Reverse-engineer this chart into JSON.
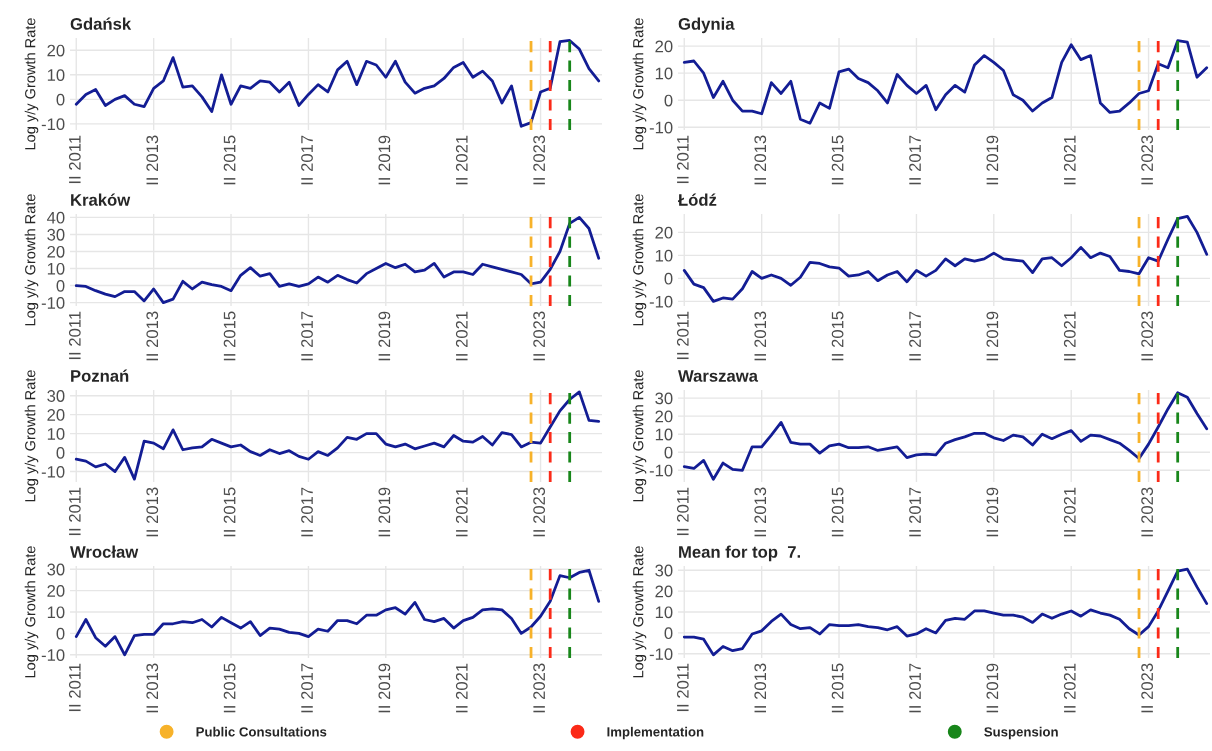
{
  "chart_data": [
    {
      "type": "line",
      "title": "Gdańsk",
      "ylabel": "Log y/y Growth Rate",
      "color": "#131d94",
      "grid": true,
      "legend": "bottom",
      "x": [
        "2011-04",
        "2011-07",
        "2011-10",
        "2012-01",
        "2012-04",
        "2012-07",
        "2012-10",
        "2013-01",
        "2013-04",
        "2013-07",
        "2013-10",
        "2014-01",
        "2014-04",
        "2014-07",
        "2014-10",
        "2015-01",
        "2015-04",
        "2015-07",
        "2015-10",
        "2016-01",
        "2016-04",
        "2016-07",
        "2016-10",
        "2017-01",
        "2017-04",
        "2017-07",
        "2017-10",
        "2018-01",
        "2018-04",
        "2018-07",
        "2018-10",
        "2019-01",
        "2019-04",
        "2019-07",
        "2019-10",
        "2020-01",
        "2020-04",
        "2020-07",
        "2020-10",
        "2021-01",
        "2021-04",
        "2021-07",
        "2021-10",
        "2022-01",
        "2022-04",
        "2022-07",
        "2022-10",
        "2023-01",
        "2023-04",
        "2023-07",
        "2023-10",
        "2024-01",
        "2024-04",
        "2024-07",
        "2024-10"
      ],
      "values": [
        -2,
        2,
        4,
        -2.5,
        0,
        1.5,
        -2,
        -3,
        4.5,
        7.5,
        17,
        5,
        5.5,
        1,
        -5,
        10,
        -2,
        5.5,
        4.5,
        7.5,
        7,
        3,
        7,
        -2.5,
        2,
        6,
        3,
        12,
        15.5,
        6,
        15.5,
        14,
        9,
        15.5,
        7,
        2.5,
        4.5,
        5.5,
        8.5,
        13,
        15,
        9,
        11.5,
        7.5,
        -1.5,
        5.5,
        -11,
        -9.5,
        3,
        4.5,
        23.5,
        24,
        20.5,
        12.5,
        7.5
      ],
      "xlim": [
        "2011-02",
        "2024-11"
      ],
      "xticks": [
        {
          "value": "2011-04",
          "label": "II 2011"
        },
        {
          "value": "2013-04",
          "label": "II 2013"
        },
        {
          "value": "2015-04",
          "label": "II 2015"
        },
        {
          "value": "2017-04",
          "label": "II 2017"
        },
        {
          "value": "2019-04",
          "label": "II 2019"
        },
        {
          "value": "2021-04",
          "label": "II 2021"
        },
        {
          "value": "2023-04",
          "label": "II 2023"
        }
      ],
      "ylim": [
        -12.5,
        25
      ],
      "yticks": [
        -10,
        0,
        10,
        20
      ],
      "ref_lines": [
        {
          "axis": "x",
          "value": "2023-01",
          "label": "Public Consultations",
          "color": "#f7b22a",
          "line_style": "dashed"
        },
        {
          "axis": "x",
          "value": "2023-07",
          "label": "Implementation",
          "color": "#fb2a18",
          "line_style": "dashed"
        },
        {
          "axis": "x",
          "value": "2024-01",
          "label": "Suspension",
          "color": "#18861a",
          "line_style": "dashed"
        }
      ]
    },
    {
      "type": "line",
      "title": "Gdynia",
      "ylabel": "Log y/y Growth Rate",
      "color": "#131d94",
      "grid": true,
      "x": [
        "2011-04",
        "2011-07",
        "2011-10",
        "2012-01",
        "2012-04",
        "2012-07",
        "2012-10",
        "2013-01",
        "2013-04",
        "2013-07",
        "2013-10",
        "2014-01",
        "2014-04",
        "2014-07",
        "2014-10",
        "2015-01",
        "2015-04",
        "2015-07",
        "2015-10",
        "2016-01",
        "2016-04",
        "2016-07",
        "2016-10",
        "2017-01",
        "2017-04",
        "2017-07",
        "2017-10",
        "2018-01",
        "2018-04",
        "2018-07",
        "2018-10",
        "2019-01",
        "2019-04",
        "2019-07",
        "2019-10",
        "2020-01",
        "2020-04",
        "2020-07",
        "2020-10",
        "2021-01",
        "2021-04",
        "2021-07",
        "2021-10",
        "2022-01",
        "2022-04",
        "2022-07",
        "2022-10",
        "2023-01",
        "2023-04",
        "2023-07",
        "2023-10",
        "2024-01",
        "2024-04",
        "2024-07",
        "2024-10"
      ],
      "values": [
        14,
        14.5,
        10,
        1,
        7,
        0,
        -4,
        -4,
        -5,
        6.5,
        2.5,
        7,
        -7,
        -8.5,
        -1,
        -3,
        10.5,
        11.5,
        8,
        6.5,
        3.5,
        -1,
        9.5,
        5.5,
        2.5,
        5.5,
        -3.5,
        2,
        5.5,
        3,
        13,
        16.5,
        14,
        11,
        2,
        0,
        -4,
        -1,
        1,
        14,
        20.5,
        15,
        16.5,
        -1,
        -4.5,
        -4,
        -1,
        2.5,
        3.5,
        13.5,
        12,
        22,
        21.5,
        8.5,
        12
      ],
      "xlim": [
        "2011-02",
        "2024-11"
      ],
      "xticks": [
        {
          "value": "2011-04",
          "label": "II 2011"
        },
        {
          "value": "2013-04",
          "label": "II 2013"
        },
        {
          "value": "2015-04",
          "label": "II 2015"
        },
        {
          "value": "2017-04",
          "label": "II 2017"
        },
        {
          "value": "2019-04",
          "label": "II 2019"
        },
        {
          "value": "2021-04",
          "label": "II 2021"
        },
        {
          "value": "2023-04",
          "label": "II 2023"
        }
      ],
      "ylim": [
        -11,
        23
      ],
      "yticks": [
        -10,
        0,
        10,
        20
      ],
      "ref_lines": [
        {
          "axis": "x",
          "value": "2023-01",
          "color": "#f7b22a",
          "line_style": "dashed"
        },
        {
          "axis": "x",
          "value": "2023-07",
          "color": "#fb2a18",
          "line_style": "dashed"
        },
        {
          "axis": "x",
          "value": "2024-01",
          "color": "#18861a",
          "line_style": "dashed"
        }
      ]
    },
    {
      "type": "line",
      "title": "Kraków",
      "ylabel": "Log y/y Growth Rate",
      "color": "#131d94",
      "grid": true,
      "x": [
        "2011-04",
        "2011-07",
        "2011-10",
        "2012-01",
        "2012-04",
        "2012-07",
        "2012-10",
        "2013-01",
        "2013-04",
        "2013-07",
        "2013-10",
        "2014-01",
        "2014-04",
        "2014-07",
        "2014-10",
        "2015-01",
        "2015-04",
        "2015-07",
        "2015-10",
        "2016-01",
        "2016-04",
        "2016-07",
        "2016-10",
        "2017-01",
        "2017-04",
        "2017-07",
        "2017-10",
        "2018-01",
        "2018-04",
        "2018-07",
        "2018-10",
        "2019-01",
        "2019-04",
        "2019-07",
        "2019-10",
        "2020-01",
        "2020-04",
        "2020-07",
        "2020-10",
        "2021-01",
        "2021-04",
        "2021-07",
        "2021-10",
        "2022-01",
        "2022-04",
        "2022-07",
        "2022-10",
        "2023-01",
        "2023-04",
        "2023-07",
        "2023-10",
        "2024-01",
        "2024-04",
        "2024-07",
        "2024-10"
      ],
      "values": [
        0,
        -0.5,
        -3,
        -5,
        -6.5,
        -3.5,
        -3.5,
        -9,
        -2,
        -10,
        -8,
        2.5,
        -2,
        2,
        0.5,
        -0.5,
        -3,
        6,
        10.5,
        5.5,
        7,
        -0.5,
        1,
        -0.5,
        1,
        5,
        2,
        6,
        3.5,
        1.5,
        7,
        10,
        13,
        10.5,
        12.5,
        8,
        9,
        13,
        5,
        8,
        8,
        6.5,
        12.5,
        11,
        9.5,
        8,
        6.5,
        1,
        2,
        9.5,
        20,
        36.5,
        40,
        33.5,
        16
      ],
      "xlim": [
        "2011-02",
        "2024-11"
      ],
      "xticks": [
        {
          "value": "2011-04",
          "label": "II 2011"
        },
        {
          "value": "2013-04",
          "label": "II 2013"
        },
        {
          "value": "2015-04",
          "label": "II 2015"
        },
        {
          "value": "2017-04",
          "label": "II 2017"
        },
        {
          "value": "2019-04",
          "label": "II 2019"
        },
        {
          "value": "2021-04",
          "label": "II 2021"
        },
        {
          "value": "2023-04",
          "label": "II 2023"
        }
      ],
      "ylim": [
        -12,
        42
      ],
      "yticks": [
        -10,
        0,
        10,
        20,
        30,
        40
      ],
      "ref_lines": [
        {
          "axis": "x",
          "value": "2023-01",
          "color": "#f7b22a",
          "line_style": "dashed"
        },
        {
          "axis": "x",
          "value": "2023-07",
          "color": "#fb2a18",
          "line_style": "dashed"
        },
        {
          "axis": "x",
          "value": "2024-01",
          "color": "#18861a",
          "line_style": "dashed"
        }
      ]
    },
    {
      "type": "line",
      "title": "Łódź",
      "ylabel": "Log y/y Growth Rate",
      "color": "#131d94",
      "grid": true,
      "x": [
        "2011-04",
        "2011-07",
        "2011-10",
        "2012-01",
        "2012-04",
        "2012-07",
        "2012-10",
        "2013-01",
        "2013-04",
        "2013-07",
        "2013-10",
        "2014-01",
        "2014-04",
        "2014-07",
        "2014-10",
        "2015-01",
        "2015-04",
        "2015-07",
        "2015-10",
        "2016-01",
        "2016-04",
        "2016-07",
        "2016-10",
        "2017-01",
        "2017-04",
        "2017-07",
        "2017-10",
        "2018-01",
        "2018-04",
        "2018-07",
        "2018-10",
        "2019-01",
        "2019-04",
        "2019-07",
        "2019-10",
        "2020-01",
        "2020-04",
        "2020-07",
        "2020-10",
        "2021-01",
        "2021-04",
        "2021-07",
        "2021-10",
        "2022-01",
        "2022-04",
        "2022-07",
        "2022-10",
        "2023-01",
        "2023-04",
        "2023-07",
        "2023-10",
        "2024-01",
        "2024-04",
        "2024-07",
        "2024-10"
      ],
      "values": [
        3.5,
        -2.5,
        -4,
        -10,
        -8.5,
        -9,
        -4.5,
        3,
        0,
        1.5,
        0,
        -3,
        0.5,
        7,
        6.5,
        5,
        4.5,
        1,
        1.5,
        3,
        -1,
        1.5,
        3,
        -1.5,
        3.5,
        1,
        3.5,
        8.5,
        5.5,
        8.5,
        7.5,
        8.5,
        11,
        8.5,
        8,
        7.5,
        2.5,
        8.5,
        9,
        5.5,
        9,
        13.5,
        9,
        11,
        9.5,
        3.5,
        3,
        2,
        9,
        7.5,
        17,
        26,
        27,
        20,
        10.5
      ],
      "xlim": [
        "2011-02",
        "2024-11"
      ],
      "xticks": [
        {
          "value": "2011-04",
          "label": "II 2011"
        },
        {
          "value": "2013-04",
          "label": "II 2013"
        },
        {
          "value": "2015-04",
          "label": "II 2015"
        },
        {
          "value": "2017-04",
          "label": "II 2017"
        },
        {
          "value": "2019-04",
          "label": "II 2019"
        },
        {
          "value": "2021-04",
          "label": "II 2021"
        },
        {
          "value": "2023-04",
          "label": "II 2023"
        }
      ],
      "ylim": [
        -12,
        28
      ],
      "yticks": [
        -10,
        0,
        10,
        20
      ],
      "ref_lines": [
        {
          "axis": "x",
          "value": "2023-01",
          "color": "#f7b22a",
          "line_style": "dashed"
        },
        {
          "axis": "x",
          "value": "2023-07",
          "color": "#fb2a18",
          "line_style": "dashed"
        },
        {
          "axis": "x",
          "value": "2024-01",
          "color": "#18861a",
          "line_style": "dashed"
        }
      ]
    },
    {
      "type": "line",
      "title": "Poznań",
      "ylabel": "Log y/y Growth Rate",
      "color": "#131d94",
      "grid": true,
      "x": [
        "2011-04",
        "2011-07",
        "2011-10",
        "2012-01",
        "2012-04",
        "2012-07",
        "2012-10",
        "2013-01",
        "2013-04",
        "2013-07",
        "2013-10",
        "2014-01",
        "2014-04",
        "2014-07",
        "2014-10",
        "2015-01",
        "2015-04",
        "2015-07",
        "2015-10",
        "2016-01",
        "2016-04",
        "2016-07",
        "2016-10",
        "2017-01",
        "2017-04",
        "2017-07",
        "2017-10",
        "2018-01",
        "2018-04",
        "2018-07",
        "2018-10",
        "2019-01",
        "2019-04",
        "2019-07",
        "2019-10",
        "2020-01",
        "2020-04",
        "2020-07",
        "2020-10",
        "2021-01",
        "2021-04",
        "2021-07",
        "2021-10",
        "2022-01",
        "2022-04",
        "2022-07",
        "2022-10",
        "2023-01",
        "2023-04",
        "2023-07",
        "2023-10",
        "2024-01",
        "2024-04",
        "2024-07",
        "2024-10"
      ],
      "values": [
        -3.5,
        -4.5,
        -7.5,
        -6,
        -10,
        -2.5,
        -14,
        6,
        5,
        2,
        12,
        1.5,
        2.5,
        3,
        7,
        5,
        3,
        4,
        0.5,
        -1.5,
        1.5,
        -0.5,
        1,
        -2,
        -3.5,
        0.5,
        -1.5,
        2.5,
        8,
        7,
        10,
        10,
        4.5,
        3,
        4.5,
        2,
        3.5,
        5,
        3,
        9,
        6,
        5.5,
        8.5,
        4,
        10.5,
        9.5,
        3,
        5.5,
        5,
        13.5,
        22,
        28,
        32,
        17,
        16.5
      ],
      "xlim": [
        "2011-02",
        "2024-11"
      ],
      "xticks": [
        {
          "value": "2011-04",
          "label": "II 2011"
        },
        {
          "value": "2013-04",
          "label": "II 2013"
        },
        {
          "value": "2015-04",
          "label": "II 2015"
        },
        {
          "value": "2017-04",
          "label": "II 2017"
        },
        {
          "value": "2019-04",
          "label": "II 2019"
        },
        {
          "value": "2021-04",
          "label": "II 2021"
        },
        {
          "value": "2023-04",
          "label": "II 2023"
        }
      ],
      "ylim": [
        -15.5,
        33
      ],
      "yticks": [
        -10,
        0,
        10,
        20,
        30
      ],
      "ref_lines": [
        {
          "axis": "x",
          "value": "2023-01",
          "color": "#f7b22a",
          "line_style": "dashed"
        },
        {
          "axis": "x",
          "value": "2023-07",
          "color": "#fb2a18",
          "line_style": "dashed"
        },
        {
          "axis": "x",
          "value": "2024-01",
          "color": "#18861a",
          "line_style": "dashed"
        }
      ]
    },
    {
      "type": "line",
      "title": "Warszawa",
      "ylabel": "Log y/y Growth Rate",
      "color": "#131d94",
      "grid": true,
      "x": [
        "2011-04",
        "2011-07",
        "2011-10",
        "2012-01",
        "2012-04",
        "2012-07",
        "2012-10",
        "2013-01",
        "2013-04",
        "2013-07",
        "2013-10",
        "2014-01",
        "2014-04",
        "2014-07",
        "2014-10",
        "2015-01",
        "2015-04",
        "2015-07",
        "2015-10",
        "2016-01",
        "2016-04",
        "2016-07",
        "2016-10",
        "2017-01",
        "2017-04",
        "2017-07",
        "2017-10",
        "2018-01",
        "2018-04",
        "2018-07",
        "2018-10",
        "2019-01",
        "2019-04",
        "2019-07",
        "2019-10",
        "2020-01",
        "2020-04",
        "2020-07",
        "2020-10",
        "2021-01",
        "2021-04",
        "2021-07",
        "2021-10",
        "2022-01",
        "2022-04",
        "2022-07",
        "2022-10",
        "2023-01",
        "2023-04",
        "2023-07",
        "2023-10",
        "2024-01",
        "2024-04",
        "2024-07",
        "2024-10"
      ],
      "values": [
        -8,
        -9,
        -4.5,
        -15,
        -6,
        -9.5,
        -10,
        3,
        3,
        9.5,
        16.5,
        5.5,
        4.5,
        4.5,
        -0.5,
        3.5,
        4.5,
        2.5,
        2.5,
        3,
        1,
        2,
        3,
        -3,
        -1.5,
        -1,
        -1.5,
        5,
        7,
        8.5,
        10.5,
        10.5,
        8,
        6.5,
        9.5,
        8.5,
        4,
        10,
        7.5,
        10,
        12,
        6,
        9.5,
        9,
        7,
        5,
        1,
        -3.5,
        4.5,
        14,
        24,
        33,
        30.5,
        21.5,
        13
      ],
      "xlim": [
        "2011-02",
        "2024-11"
      ],
      "xticks": [
        {
          "value": "2011-04",
          "label": "II 2011"
        },
        {
          "value": "2013-04",
          "label": "II 2013"
        },
        {
          "value": "2015-04",
          "label": "II 2015"
        },
        {
          "value": "2017-04",
          "label": "II 2017"
        },
        {
          "value": "2019-04",
          "label": "II 2019"
        },
        {
          "value": "2021-04",
          "label": "II 2021"
        },
        {
          "value": "2023-04",
          "label": "II 2023"
        }
      ],
      "ylim": [
        -16.5,
        34.5
      ],
      "yticks": [
        -10,
        0,
        10,
        20,
        30
      ],
      "ref_lines": [
        {
          "axis": "x",
          "value": "2023-01",
          "color": "#f7b22a",
          "line_style": "dashed"
        },
        {
          "axis": "x",
          "value": "2023-07",
          "color": "#fb2a18",
          "line_style": "dashed"
        },
        {
          "axis": "x",
          "value": "2024-01",
          "color": "#18861a",
          "line_style": "dashed"
        }
      ]
    },
    {
      "type": "line",
      "title": "Wrocław",
      "ylabel": "Log y/y Growth Rate",
      "color": "#131d94",
      "grid": true,
      "x": [
        "2011-04",
        "2011-07",
        "2011-10",
        "2012-01",
        "2012-04",
        "2012-07",
        "2012-10",
        "2013-01",
        "2013-04",
        "2013-07",
        "2013-10",
        "2014-01",
        "2014-04",
        "2014-07",
        "2014-10",
        "2015-01",
        "2015-04",
        "2015-07",
        "2015-10",
        "2016-01",
        "2016-04",
        "2016-07",
        "2016-10",
        "2017-01",
        "2017-04",
        "2017-07",
        "2017-10",
        "2018-01",
        "2018-04",
        "2018-07",
        "2018-10",
        "2019-01",
        "2019-04",
        "2019-07",
        "2019-10",
        "2020-01",
        "2020-04",
        "2020-07",
        "2020-10",
        "2021-01",
        "2021-04",
        "2021-07",
        "2021-10",
        "2022-01",
        "2022-04",
        "2022-07",
        "2022-10",
        "2023-01",
        "2023-04",
        "2023-07",
        "2023-10",
        "2024-01",
        "2024-04",
        "2024-07",
        "2024-10"
      ],
      "values": [
        -1.5,
        6.5,
        -2,
        -6,
        -1.5,
        -10,
        -1,
        -0.5,
        -0.5,
        4.5,
        4.5,
        5.5,
        5,
        6.5,
        3,
        7.5,
        5,
        2.5,
        5.5,
        -1,
        2.5,
        2,
        0.5,
        0,
        -1.5,
        2,
        1,
        6,
        6,
        4.5,
        8.5,
        8.5,
        11,
        12,
        9,
        14.5,
        6.5,
        5.5,
        7,
        2.5,
        6,
        7.5,
        11,
        11.5,
        11,
        7,
        0,
        3,
        8,
        15,
        27,
        26,
        28.5,
        29.5,
        15
      ],
      "xlim": [
        "2011-02",
        "2024-11"
      ],
      "xticks": [
        {
          "value": "2011-04",
          "label": "II 2011"
        },
        {
          "value": "2013-04",
          "label": "II 2013"
        },
        {
          "value": "2015-04",
          "label": "II 2015"
        },
        {
          "value": "2017-04",
          "label": "II 2017"
        },
        {
          "value": "2019-04",
          "label": "II 2019"
        },
        {
          "value": "2021-04",
          "label": "II 2021"
        },
        {
          "value": "2023-04",
          "label": "II 2023"
        }
      ],
      "ylim": [
        -11.5,
        31.5
      ],
      "yticks": [
        -10,
        0,
        10,
        20,
        30
      ],
      "ref_lines": [
        {
          "axis": "x",
          "value": "2023-01",
          "color": "#f7b22a",
          "line_style": "dashed"
        },
        {
          "axis": "x",
          "value": "2023-07",
          "color": "#fb2a18",
          "line_style": "dashed"
        },
        {
          "axis": "x",
          "value": "2024-01",
          "color": "#18861a",
          "line_style": "dashed"
        }
      ]
    },
    {
      "type": "line",
      "title": "Mean for top  7.",
      "ylabel": "Log y/y Growth Rate",
      "color": "#131d94",
      "grid": true,
      "x": [
        "2011-04",
        "2011-07",
        "2011-10",
        "2012-01",
        "2012-04",
        "2012-07",
        "2012-10",
        "2013-01",
        "2013-04",
        "2013-07",
        "2013-10",
        "2014-01",
        "2014-04",
        "2014-07",
        "2014-10",
        "2015-01",
        "2015-04",
        "2015-07",
        "2015-10",
        "2016-01",
        "2016-04",
        "2016-07",
        "2016-10",
        "2017-01",
        "2017-04",
        "2017-07",
        "2017-10",
        "2018-01",
        "2018-04",
        "2018-07",
        "2018-10",
        "2019-01",
        "2019-04",
        "2019-07",
        "2019-10",
        "2020-01",
        "2020-04",
        "2020-07",
        "2020-10",
        "2021-01",
        "2021-04",
        "2021-07",
        "2021-10",
        "2022-01",
        "2022-04",
        "2022-07",
        "2022-10",
        "2023-01",
        "2023-04",
        "2023-07",
        "2023-10",
        "2024-01",
        "2024-04",
        "2024-07",
        "2024-10"
      ],
      "values": [
        -2,
        -2,
        -3,
        -10.5,
        -6.5,
        -8.5,
        -7.5,
        -0.5,
        1,
        5.5,
        9,
        4,
        2,
        2.5,
        -0.5,
        4,
        3.5,
        3.5,
        4,
        3,
        2.5,
        1.5,
        3,
        -1.5,
        -0.5,
        2,
        0,
        6,
        7,
        6.5,
        10.5,
        10.5,
        9.5,
        8.5,
        8.5,
        7.5,
        5,
        9,
        7,
        9,
        10.5,
        8,
        11,
        9.5,
        8.5,
        6.5,
        2,
        -1,
        3,
        10.5,
        20,
        29.5,
        30.5,
        22,
        14
      ],
      "xlim": [
        "2011-02",
        "2024-11"
      ],
      "xticks": [
        {
          "value": "2011-04",
          "label": "II 2011"
        },
        {
          "value": "2013-04",
          "label": "II 2013"
        },
        {
          "value": "2015-04",
          "label": "II 2015"
        },
        {
          "value": "2017-04",
          "label": "II 2017"
        },
        {
          "value": "2019-04",
          "label": "II 2019"
        },
        {
          "value": "2021-04",
          "label": "II 2021"
        },
        {
          "value": "2023-04",
          "label": "II 2023"
        }
      ],
      "ylim": [
        -12,
        32
      ],
      "yticks": [
        -10,
        0,
        10,
        20,
        30
      ],
      "ref_lines": [
        {
          "axis": "x",
          "value": "2023-01",
          "color": "#f7b22a",
          "line_style": "dashed"
        },
        {
          "axis": "x",
          "value": "2023-07",
          "color": "#fb2a18",
          "line_style": "dashed"
        },
        {
          "axis": "x",
          "value": "2024-01",
          "color": "#18861a",
          "line_style": "dashed"
        }
      ]
    }
  ]
}
